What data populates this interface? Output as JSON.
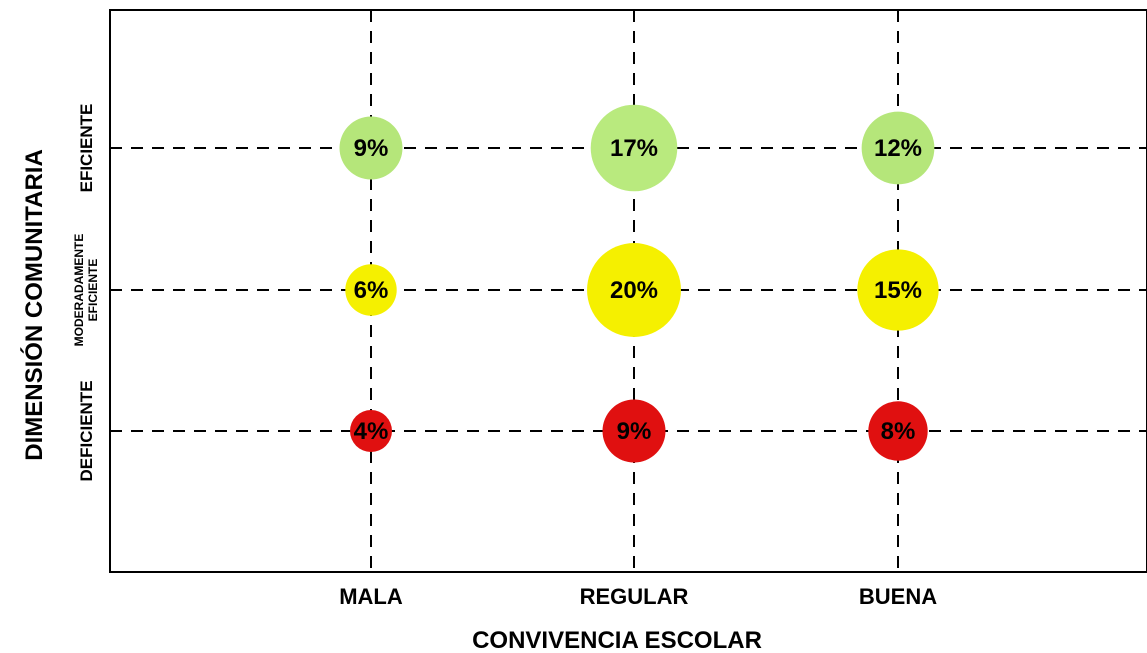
{
  "chart_data": {
    "type": "scatter",
    "xlabel": "CONVIVENCIA ESCOLAR",
    "ylabel": "DIMENSIÓN COMUNITARIA",
    "x_categories": [
      "MALA",
      "REGULAR",
      "BUENA"
    ],
    "y_categories": [
      {
        "label": "DEFICIENTE",
        "lines": [
          "DEFICIENTE"
        ]
      },
      {
        "label": "MODERADAMENTE EFICIENTE",
        "lines": [
          "MODERADAMENTE",
          "EFICIENTE"
        ]
      },
      {
        "label": "EFICIENTE",
        "lines": [
          "EFICIENTE"
        ]
      }
    ],
    "grid": true,
    "points": [
      {
        "x": "MALA",
        "y": "EFICIENTE",
        "value": 9,
        "label": "9%",
        "color": "#b5e67a"
      },
      {
        "x": "REGULAR",
        "y": "EFICIENTE",
        "value": 17,
        "label": "17%",
        "color": "#b9ea7e"
      },
      {
        "x": "BUENA",
        "y": "EFICIENTE",
        "value": 12,
        "label": "12%",
        "color": "#b5e67a"
      },
      {
        "x": "MALA",
        "y": "MODERADAMENTE EFICIENTE",
        "value": 6,
        "label": "6%",
        "color": "#f5f000"
      },
      {
        "x": "REGULAR",
        "y": "MODERADAMENTE EFICIENTE",
        "value": 20,
        "label": "20%",
        "color": "#f5f000"
      },
      {
        "x": "BUENA",
        "y": "MODERADAMENTE EFICIENTE",
        "value": 15,
        "label": "15%",
        "color": "#f5f000"
      },
      {
        "x": "MALA",
        "y": "DEFICIENTE",
        "value": 4,
        "label": "4%",
        "color": "#e01010"
      },
      {
        "x": "REGULAR",
        "y": "DEFICIENTE",
        "value": 9,
        "label": "9%",
        "color": "#e01010"
      },
      {
        "x": "BUENA",
        "y": "DEFICIENTE",
        "value": 8,
        "label": "8%",
        "color": "#e01010"
      }
    ]
  }
}
